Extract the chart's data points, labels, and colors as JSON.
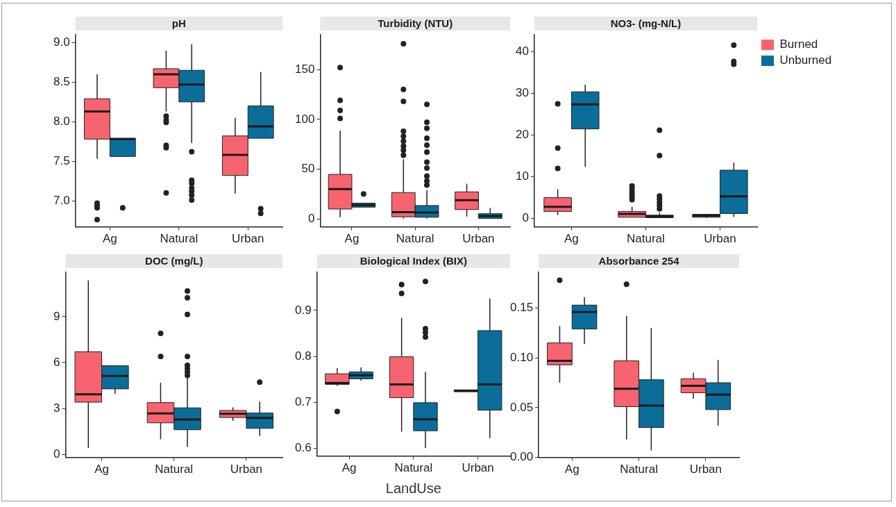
{
  "chart_data": [
    {
      "type": "box",
      "title": "pH",
      "categories": [
        "Ag",
        "Natural",
        "Urban"
      ],
      "ylim": [
        6.67,
        9.1
      ],
      "yticks": [
        {
          "value": 7,
          "label": "7.0"
        },
        7.5,
        {
          "value": 8,
          "label": "8.0"
        },
        8.5,
        {
          "value": 9,
          "label": "9.0"
        }
      ],
      "series": [
        {
          "color": "#f7646f",
          "boxes": [
            {
              "low": 7.53,
              "q1": 7.78,
              "median": 8.13,
              "q3": 8.29,
              "high": 8.6,
              "outliers": [
                6.97,
                6.94,
                6.91,
                6.76
              ]
            },
            {
              "low": 8.13,
              "q1": 8.43,
              "median": 8.6,
              "q3": 8.67,
              "high": 8.9,
              "outliers": [
                8.07,
                8.02,
                7.99,
                7.7,
                7.67,
                7.1
              ]
            },
            {
              "low": 7.09,
              "q1": 7.32,
              "median": 7.58,
              "q3": 7.82,
              "high": 8.05
            }
          ]
        },
        {
          "color": "#0b6d99",
          "boxes": [
            {
              "low": 7.56,
              "q1": 7.56,
              "median": 7.78,
              "q3": 7.79,
              "high": 7.79,
              "outliers": [
                6.91
              ]
            },
            {
              "low": 7.73,
              "q1": 8.25,
              "median": 8.47,
              "q3": 8.65,
              "high": 8.98,
              "outliers": [
                7.62,
                7.26,
                7.22,
                7.16,
                7.12,
                7.07,
                7.01
              ]
            },
            {
              "low": 7.79,
              "q1": 7.79,
              "median": 7.94,
              "q3": 8.2,
              "high": 8.63,
              "outliers": [
                6.9,
                6.84
              ]
            }
          ]
        }
      ]
    },
    {
      "type": "box",
      "title": "Turbidity (NTU)",
      "categories": [
        "Ag",
        "Natural",
        "Urban"
      ],
      "ylim": [
        -8,
        185
      ],
      "yticks": [
        0,
        50,
        100,
        150
      ],
      "series": [
        {
          "color": "#f7646f",
          "boxes": [
            {
              "low": 1.6,
              "q1": 9.9,
              "median": 29.9,
              "q3": 44.7,
              "high": 88.8,
              "outliers": [
                152,
                119,
                109,
                101
              ]
            },
            {
              "low": 0.5,
              "q1": 2.1,
              "median": 6.8,
              "q3": 26.4,
              "high": 60,
              "outliers": [
                176,
                130,
                118,
                88,
                83,
                78,
                73,
                69,
                64
              ]
            },
            {
              "low": 2.4,
              "q1": 9.4,
              "median": 18.8,
              "q3": 27.1,
              "high": 35.3
            }
          ]
        },
        {
          "color": "#0b6d99",
          "boxes": [
            {
              "low": 11.8,
              "q1": 11.8,
              "median": 13.9,
              "q3": 15.8,
              "high": 15.8,
              "outliers": [
                25
              ]
            },
            {
              "low": 0.5,
              "q1": 1.6,
              "median": 6.4,
              "q3": 13.4,
              "high": 28.7,
              "outliers": [
                115,
                97,
                91,
                81,
                74,
                67,
                57,
                51,
                43,
                38,
                34
              ]
            },
            {
              "low": 0.5,
              "q1": 0.5,
              "median": 2.8,
              "q3": 5.2,
              "high": 11
            }
          ]
        }
      ]
    },
    {
      "type": "box",
      "title": "NO3- (mg-N/L)",
      "categories": [
        "Ag",
        "Natural",
        "Urban"
      ],
      "ylim": [
        -2.1,
        44
      ],
      "yticks": [
        0,
        10,
        20,
        30,
        40
      ],
      "legend": "top right",
      "series": [
        {
          "name": "Burned",
          "color": "#f7646f",
          "boxes": [
            {
              "low": 0.7,
              "q1": 1.6,
              "median": 2.7,
              "q3": 4.9,
              "high": 6.9,
              "outliers": [
                27.4,
                16.8,
                11.9
              ]
            },
            {
              "low": 0.2,
              "q1": 0.2,
              "median": 1,
              "q3": 1.6,
              "high": 2.7,
              "outliers": [
                7.7,
                7,
                6.3,
                5.6,
                4.9,
                4.4
              ]
            },
            {
              "low": 0,
              "q1": 0.2,
              "median": 0.6,
              "q3": 0.9,
              "high": 0.9
            }
          ]
        },
        {
          "name": "Unburned",
          "color": "#0b6d99",
          "boxes": [
            {
              "low": 12.3,
              "q1": 21.4,
              "median": 27.3,
              "q3": 30.3,
              "high": 32
            },
            {
              "low": 0,
              "q1": 0.1,
              "median": 0.4,
              "q3": 0.7,
              "high": 1.3,
              "outliers": [
                21.1,
                15,
                5.3,
                4.6,
                3.8,
                3,
                2.2
              ]
            },
            {
              "low": 0.3,
              "q1": 1.1,
              "median": 5.2,
              "q3": 11.5,
              "high": 13.3,
              "outliers": [
                41.5,
                37.6,
                36.9
              ]
            }
          ]
        }
      ]
    },
    {
      "type": "box",
      "title": "DOC (mg/L)",
      "categories": [
        "Ag",
        "Natural",
        "Urban"
      ],
      "ylim": [
        -0.2,
        11.9
      ],
      "yticks": [
        0,
        3,
        6,
        9
      ],
      "series": [
        {
          "color": "#f7646f",
          "boxes": [
            {
              "low": 0.41,
              "q1": 3.41,
              "median": 3.92,
              "q3": 6.7,
              "high": 11.37
            },
            {
              "low": 0.99,
              "q1": 2.06,
              "median": 2.68,
              "q3": 3.38,
              "high": 4.68,
              "outliers": [
                7.91,
                6.4
              ]
            },
            {
              "low": 2.19,
              "q1": 2.41,
              "median": 2.65,
              "q3": 2.87,
              "high": 3.07
            }
          ]
        },
        {
          "color": "#0b6d99",
          "boxes": [
            {
              "low": 3.95,
              "q1": 4.28,
              "median": 5.13,
              "q3": 5.79,
              "high": 5.79
            },
            {
              "low": 0.48,
              "q1": 1.61,
              "median": 2.28,
              "q3": 3.04,
              "high": 5.01,
              "outliers": [
                10.67,
                10.23,
                9.14,
                6.4,
                5.82,
                5.6,
                5.38,
                5.16
              ]
            },
            {
              "low": 1.21,
              "q1": 1.7,
              "median": 2.38,
              "q3": 2.7,
              "high": 3.45,
              "outliers": [
                4.72
              ]
            }
          ]
        }
      ]
    },
    {
      "type": "box",
      "title": "Biological Index (BIX)",
      "xlabel": "LandUse",
      "categories": [
        "Ag",
        "Natural",
        "Urban"
      ],
      "ylim": [
        0.583,
        0.983
      ],
      "yticks": [
        0.6,
        0.7,
        0.8,
        0.9
      ],
      "series": [
        {
          "color": "#f7646f",
          "boxes": [
            {
              "low": 0.736,
              "q1": 0.739,
              "median": 0.742,
              "q3": 0.762,
              "high": 0.774,
              "outliers": [
                0.68
              ]
            },
            {
              "low": 0.636,
              "q1": 0.71,
              "median": 0.739,
              "q3": 0.799,
              "high": 0.884,
              "outliers": [
                0.956,
                0.937
              ]
            },
            {
              "low": 0.723,
              "q1": 0.723,
              "median": 0.725,
              "q3": 0.727,
              "high": 0.727
            }
          ]
        },
        {
          "color": "#0b6d99",
          "boxes": [
            {
              "low": 0.747,
              "q1": 0.751,
              "median": 0.759,
              "q3": 0.766,
              "high": 0.776
            },
            {
              "low": 0.6,
              "q1": 0.638,
              "median": 0.663,
              "q3": 0.699,
              "high": 0.766,
              "outliers": [
                0.963,
                0.86,
                0.852,
                0.842
              ]
            },
            {
              "low": 0.622,
              "q1": 0.683,
              "median": 0.739,
              "q3": 0.856,
              "high": 0.926
            }
          ]
        }
      ]
    },
    {
      "type": "box",
      "title": "Absorbance 254",
      "categories": [
        "Ag",
        "Natural",
        "Urban"
      ],
      "ylim": [
        0,
        0.186
      ],
      "yticks": [
        {
          "value": 0,
          "label": "0.00"
        },
        0.05,
        {
          "value": 0.1,
          "label": "0.10"
        },
        0.15
      ],
      "series": [
        {
          "color": "#f7646f",
          "boxes": [
            {
              "low": 0.075,
              "q1": 0.093,
              "median": 0.097,
              "q3": 0.115,
              "high": 0.132,
              "outliers": [
                0.178
              ]
            },
            {
              "low": 0.018,
              "q1": 0.051,
              "median": 0.069,
              "q3": 0.097,
              "high": 0.142,
              "outliers": [
                0.174
              ]
            },
            {
              "low": 0.059,
              "q1": 0.065,
              "median": 0.072,
              "q3": 0.079,
              "high": 0.085
            }
          ]
        },
        {
          "color": "#0b6d99",
          "boxes": [
            {
              "low": 0.114,
              "q1": 0.129,
              "median": 0.146,
              "q3": 0.153,
              "high": 0.161
            },
            {
              "low": 0.007,
              "q1": 0.03,
              "median": 0.052,
              "q3": 0.078,
              "high": 0.13
            },
            {
              "low": 0.032,
              "q1": 0.048,
              "median": 0.063,
              "q3": 0.075,
              "high": 0.098
            }
          ]
        }
      ]
    }
  ]
}
